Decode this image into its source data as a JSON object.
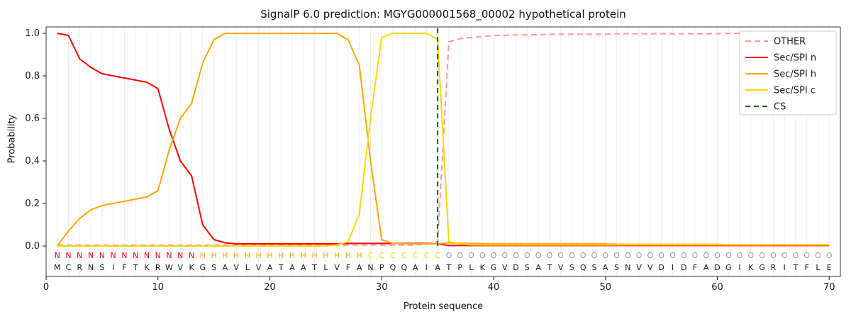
{
  "chart_data": {
    "type": "line",
    "title": "SignalP 6.0 prediction: MGYG000001568_00002 hypothetical protein",
    "xlabel": "Protein sequence",
    "ylabel": "Probability",
    "xlim": [
      0,
      71
    ],
    "ylim": [
      -0.15,
      1.05
    ],
    "x_range": [
      1,
      70
    ],
    "x_ticks": [
      0,
      10,
      20,
      30,
      40,
      50,
      60,
      70
    ],
    "y_ticks": [
      0.0,
      0.2,
      0.4,
      0.6,
      0.8,
      1.0
    ],
    "grid": "vertical-per-residue",
    "legend_position": "upper-right",
    "series": [
      {
        "name": "OTHER",
        "color": "#ff9999",
        "dash": "8,5",
        "values": [
          0.004,
          0.004,
          0.004,
          0.004,
          0.004,
          0.004,
          0.004,
          0.004,
          0.004,
          0.004,
          0.004,
          0.004,
          0.004,
          0.004,
          0.004,
          0.004,
          0.004,
          0.004,
          0.004,
          0.004,
          0.004,
          0.004,
          0.004,
          0.004,
          0.004,
          0.004,
          0.004,
          0.004,
          0.004,
          0.004,
          0.004,
          0.004,
          0.004,
          0.01,
          0.02,
          0.96,
          0.975,
          0.98,
          0.985,
          0.99,
          0.99,
          0.992,
          0.993,
          0.994,
          0.995,
          0.996,
          0.996,
          0.996,
          0.996,
          0.996,
          0.998,
          0.998,
          0.998,
          0.998,
          0.998,
          0.998,
          0.998,
          0.998,
          0.998,
          0.998,
          1.0,
          1.0,
          1.0,
          1.0,
          1.0,
          1.0,
          1.0,
          1.0,
          1.0,
          1.0
        ]
      },
      {
        "name": "Sec/SPI n",
        "color": "#ff0000",
        "dash": null,
        "values": [
          1.0,
          0.99,
          0.88,
          0.84,
          0.81,
          0.8,
          0.79,
          0.78,
          0.77,
          0.74,
          0.55,
          0.4,
          0.33,
          0.1,
          0.03,
          0.015,
          0.01,
          0.01,
          0.01,
          0.01,
          0.01,
          0.01,
          0.01,
          0.01,
          0.01,
          0.01,
          0.012,
          0.012,
          0.012,
          0.012,
          0.012,
          0.012,
          0.012,
          0.012,
          0.01,
          0.002,
          0.002,
          0.002,
          0.002,
          0.002,
          0.002,
          0.002,
          0.002,
          0.002,
          0.002,
          0.002,
          0.002,
          0.002,
          0.002,
          0.002,
          0.002,
          0.002,
          0.002,
          0.002,
          0.002,
          0.002,
          0.002,
          0.002,
          0.002,
          0.002,
          0.002,
          0.002,
          0.002,
          0.002,
          0.002,
          0.002,
          0.002,
          0.002,
          0.002,
          0.002
        ]
      },
      {
        "name": "Sec/SPI h",
        "color": "#ffa500",
        "dash": null,
        "values": [
          0.0,
          0.07,
          0.13,
          0.17,
          0.19,
          0.2,
          0.21,
          0.22,
          0.23,
          0.26,
          0.45,
          0.6,
          0.67,
          0.86,
          0.97,
          1.0,
          1.0,
          1.0,
          1.0,
          1.0,
          1.0,
          1.0,
          1.0,
          1.0,
          1.0,
          1.0,
          0.97,
          0.85,
          0.4,
          0.03,
          0.012,
          0.01,
          0.01,
          0.01,
          0.01,
          0.015,
          0.013,
          0.012,
          0.011,
          0.01,
          0.01,
          0.01,
          0.01,
          0.01,
          0.01,
          0.01,
          0.01,
          0.01,
          0.01,
          0.01,
          0.008,
          0.008,
          0.008,
          0.008,
          0.008,
          0.008,
          0.008,
          0.008,
          0.008,
          0.008,
          0.006,
          0.006,
          0.006,
          0.006,
          0.006,
          0.006,
          0.006,
          0.006,
          0.006,
          0.006
        ]
      },
      {
        "name": "Sec/SPI c",
        "color": "#ffd700",
        "dash": null,
        "values": [
          0.0,
          0.0,
          0.0,
          0.0,
          0.0,
          0.0,
          0.0,
          0.0,
          0.0,
          0.0,
          0.0,
          0.0,
          0.0,
          0.0,
          0.0,
          0.0,
          0.0,
          0.0,
          0.0,
          0.0,
          0.0,
          0.0,
          0.0,
          0.0,
          0.0,
          0.005,
          0.02,
          0.15,
          0.6,
          0.98,
          1.0,
          1.0,
          1.0,
          1.0,
          0.97,
          0.02,
          0.01,
          0.005,
          0.005,
          0.005,
          0.005,
          0.005,
          0.005,
          0.005,
          0.005,
          0.005,
          0.005,
          0.005,
          0.005,
          0.005,
          0.005,
          0.005,
          0.005,
          0.005,
          0.005,
          0.005,
          0.005,
          0.005,
          0.005,
          0.005,
          0.005,
          0.005,
          0.005,
          0.005,
          0.005,
          0.005,
          0.005,
          0.005,
          0.005,
          0.005
        ]
      }
    ],
    "cs": {
      "name": "CS",
      "position": 35,
      "color": "#006400",
      "dash": "7,5"
    },
    "legend": [
      "OTHER",
      "Sec/SPI n",
      "Sec/SPI h",
      "Sec/SPI c",
      "CS"
    ],
    "sequence": [
      "M",
      "C",
      "R",
      "N",
      "S",
      "I",
      "F",
      "T",
      "K",
      "R",
      "W",
      "V",
      "K",
      "G",
      "S",
      "A",
      "V",
      "L",
      "V",
      "A",
      "T",
      "A",
      "A",
      "T",
      "L",
      "V",
      "F",
      "A",
      "N",
      "P",
      "Q",
      "Q",
      "A",
      "I",
      "A",
      "T",
      "P",
      "L",
      "K",
      "G",
      "V",
      "D",
      "S",
      "A",
      "T",
      "V",
      "S",
      "Q",
      "S",
      "A",
      "S",
      "N",
      "V",
      "V",
      "D",
      "I",
      "D",
      "F",
      "A",
      "D",
      "G",
      "I",
      "K",
      "G",
      "R",
      "I",
      "T",
      "F",
      "L",
      "E"
    ],
    "region_labels": "NNNNNNNNNNNNNHHHHHHHHHHHHHHHCCCCCCCOOOOOOOOOOOOOOOOOOOOOOOOOOOOOOOOOOO",
    "region_colors": {
      "N": "#ff0000",
      "H": "#ffa500",
      "C": "#ffd700",
      "O": "#999999"
    },
    "colors": {
      "frame": "#333333",
      "grid": "#ededed",
      "text": "#1a1a1a",
      "legend_border": "#cccccc"
    }
  }
}
